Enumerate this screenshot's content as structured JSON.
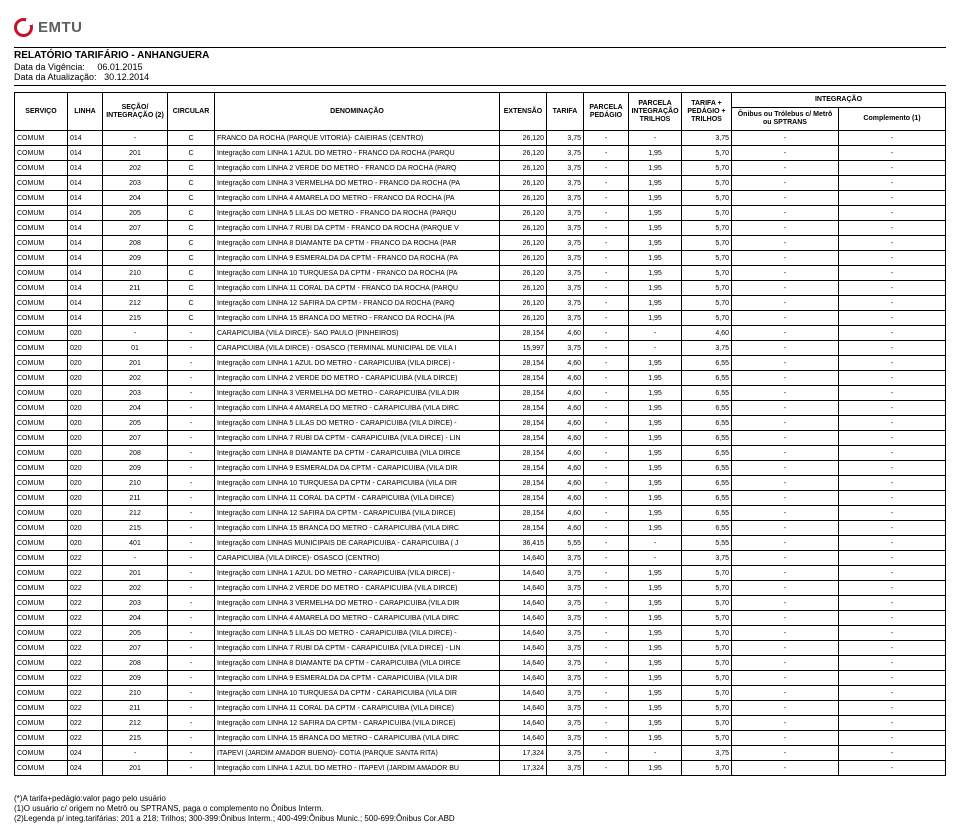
{
  "logo": {
    "text": "EMTU"
  },
  "header": {
    "title": "RELATÓRIO TARIFÁRIO - ANHANGUERA",
    "vigencia_label": "Data da Vigência:",
    "vigencia_value": "06.01.2015",
    "atualizacao_label": "Data da Atualização:",
    "atualizacao_value": "30.12.2014"
  },
  "columns": {
    "servico": "SERVIÇO",
    "linha": "LINHA",
    "secao": "SEÇÃO/ INTEGRAÇÃO (2)",
    "circular": "CIRCULAR",
    "denominacao": "DENOMINAÇÃO",
    "extensao": "EXTENSÃO",
    "tarifa": "TARIFA",
    "parcela_pedagio": "PARCELA PEDÁGIO",
    "parcela_int_trilhos": "PARCELA INTEGRAÇÃO TRILHOS",
    "tarifa_ped_trilhos": "TARIFA + PEDÁGIO + TRILHOS",
    "integracao_group": "INTEGRAÇÃO",
    "onibus_trolebus": "Ônibus ou Trólebus c/ Metrô ou SPTRANS",
    "complemento": "Complemento (1)"
  },
  "rows": [
    {
      "servico": "COMUM",
      "linha": "014",
      "secao": "-",
      "circ": "C",
      "denom": "FRANCO DA ROCHA (PARQUE VITORIA)- CAIEIRAS (CENTRO)",
      "ext": "26,120",
      "tarifa": "3,75",
      "ped": "-",
      "pit": "-",
      "tpt": "3,75",
      "ont": "-",
      "comp": "-"
    },
    {
      "servico": "COMUM",
      "linha": "014",
      "secao": "201",
      "circ": "C",
      "denom": "Integração com LINHA 1 AZUL DO METRO - FRANCO DA ROCHA (PARQU",
      "ext": "26,120",
      "tarifa": "3,75",
      "ped": "-",
      "pit": "1,95",
      "tpt": "5,70",
      "ont": "-",
      "comp": "-"
    },
    {
      "servico": "COMUM",
      "linha": "014",
      "secao": "202",
      "circ": "C",
      "denom": "Integração com LINHA 2 VERDE DO METRO - FRANCO DA ROCHA (PARQ",
      "ext": "26,120",
      "tarifa": "3,75",
      "ped": "-",
      "pit": "1,95",
      "tpt": "5,70",
      "ont": "-",
      "comp": "-"
    },
    {
      "servico": "COMUM",
      "linha": "014",
      "secao": "203",
      "circ": "C",
      "denom": "Integração com LINHA 3 VERMELHA DO METRO - FRANCO DA ROCHA (PA",
      "ext": "26,120",
      "tarifa": "3,75",
      "ped": "-",
      "pit": "1,95",
      "tpt": "5,70",
      "ont": "-",
      "comp": "-"
    },
    {
      "servico": "COMUM",
      "linha": "014",
      "secao": "204",
      "circ": "C",
      "denom": "Integração com LINHA 4 AMARELA DO METRO - FRANCO DA ROCHA (PA",
      "ext": "26,120",
      "tarifa": "3,75",
      "ped": "-",
      "pit": "1,95",
      "tpt": "5,70",
      "ont": "-",
      "comp": "-"
    },
    {
      "servico": "COMUM",
      "linha": "014",
      "secao": "205",
      "circ": "C",
      "denom": "Integração com LINHA 5 LILAS DO METRO - FRANCO DA ROCHA (PARQU",
      "ext": "26,120",
      "tarifa": "3,75",
      "ped": "-",
      "pit": "1,95",
      "tpt": "5,70",
      "ont": "-",
      "comp": "-"
    },
    {
      "servico": "COMUM",
      "linha": "014",
      "secao": "207",
      "circ": "C",
      "denom": "Integração com LINHA 7 RUBI DA CPTM - FRANCO DA ROCHA (PARQUE V",
      "ext": "26,120",
      "tarifa": "3,75",
      "ped": "-",
      "pit": "1,95",
      "tpt": "5,70",
      "ont": "-",
      "comp": "-"
    },
    {
      "servico": "COMUM",
      "linha": "014",
      "secao": "208",
      "circ": "C",
      "denom": "Integração com LINHA 8 DIAMANTE DA CPTM - FRANCO DA ROCHA (PAR",
      "ext": "26,120",
      "tarifa": "3,75",
      "ped": "-",
      "pit": "1,95",
      "tpt": "5,70",
      "ont": "-",
      "comp": "-"
    },
    {
      "servico": "COMUM",
      "linha": "014",
      "secao": "209",
      "circ": "C",
      "denom": "Integração com LINHA 9 ESMERALDA DA CPTM - FRANCO DA ROCHA (PA",
      "ext": "26,120",
      "tarifa": "3,75",
      "ped": "-",
      "pit": "1,95",
      "tpt": "5,70",
      "ont": "-",
      "comp": "-"
    },
    {
      "servico": "COMUM",
      "linha": "014",
      "secao": "210",
      "circ": "C",
      "denom": "Integração com LINHA 10 TURQUESA DA CPTM - FRANCO DA ROCHA (PA",
      "ext": "26,120",
      "tarifa": "3,75",
      "ped": "-",
      "pit": "1,95",
      "tpt": "5,70",
      "ont": "-",
      "comp": "-"
    },
    {
      "servico": "COMUM",
      "linha": "014",
      "secao": "211",
      "circ": "C",
      "denom": "Integração com LINHA 11 CORAL DA CPTM - FRANCO DA ROCHA (PARQU",
      "ext": "26,120",
      "tarifa": "3,75",
      "ped": "-",
      "pit": "1,95",
      "tpt": "5,70",
      "ont": "-",
      "comp": "-"
    },
    {
      "servico": "COMUM",
      "linha": "014",
      "secao": "212",
      "circ": "C",
      "denom": "Integração com LINHA 12 SAFIRA DA CPTM - FRANCO DA ROCHA (PARQ",
      "ext": "26,120",
      "tarifa": "3,75",
      "ped": "-",
      "pit": "1,95",
      "tpt": "5,70",
      "ont": "-",
      "comp": "-"
    },
    {
      "servico": "COMUM",
      "linha": "014",
      "secao": "215",
      "circ": "C",
      "denom": "Integração com LINHA 15 BRANCA DO METRO - FRANCO DA ROCHA (PA",
      "ext": "26,120",
      "tarifa": "3,75",
      "ped": "-",
      "pit": "1,95",
      "tpt": "5,70",
      "ont": "-",
      "comp": "-"
    },
    {
      "servico": "COMUM",
      "linha": "020",
      "secao": "-",
      "circ": "-",
      "denom": "CARAPICUIBA (VILA DIRCE)- SAO PAULO (PINHEIROS)",
      "ext": "28,154",
      "tarifa": "4,60",
      "ped": "-",
      "pit": "-",
      "tpt": "4,60",
      "ont": "-",
      "comp": "-"
    },
    {
      "servico": "COMUM",
      "linha": "020",
      "secao": "01",
      "circ": "-",
      "denom": "CARAPICUIBA (VILA DIRCE) - OSASCO (TERMINAL MUNICIPAL DE VILA I",
      "ext": "15,997",
      "tarifa": "3,75",
      "ped": "-",
      "pit": "-",
      "tpt": "3,75",
      "ont": "-",
      "comp": "-"
    },
    {
      "servico": "COMUM",
      "linha": "020",
      "secao": "201",
      "circ": "-",
      "denom": "Integração com LINHA 1 AZUL DO METRO - CARAPICUIBA (VILA DIRCE) -",
      "ext": "28,154",
      "tarifa": "4,60",
      "ped": "-",
      "pit": "1,95",
      "tpt": "6,55",
      "ont": "-",
      "comp": "-"
    },
    {
      "servico": "COMUM",
      "linha": "020",
      "secao": "202",
      "circ": "-",
      "denom": "Integração com LINHA 2 VERDE DO METRO - CARAPICUIBA (VILA DIRCE)",
      "ext": "28,154",
      "tarifa": "4,60",
      "ped": "-",
      "pit": "1,95",
      "tpt": "6,55",
      "ont": "-",
      "comp": "-"
    },
    {
      "servico": "COMUM",
      "linha": "020",
      "secao": "203",
      "circ": "-",
      "denom": "Integração com LINHA 3 VERMELHA DO METRO - CARAPICUIBA (VILA DIR",
      "ext": "28,154",
      "tarifa": "4,60",
      "ped": "-",
      "pit": "1,95",
      "tpt": "6,55",
      "ont": "-",
      "comp": "-"
    },
    {
      "servico": "COMUM",
      "linha": "020",
      "secao": "204",
      "circ": "-",
      "denom": "Integração com LINHA 4 AMARELA DO METRO - CARAPICUIBA (VILA DIRC",
      "ext": "28,154",
      "tarifa": "4,60",
      "ped": "-",
      "pit": "1,95",
      "tpt": "6,55",
      "ont": "-",
      "comp": "-"
    },
    {
      "servico": "COMUM",
      "linha": "020",
      "secao": "205",
      "circ": "-",
      "denom": "Integração com LINHA 5 LILAS DO METRO - CARAPICUIBA (VILA DIRCE) -",
      "ext": "28,154",
      "tarifa": "4,60",
      "ped": "-",
      "pit": "1,95",
      "tpt": "6,55",
      "ont": "-",
      "comp": "-"
    },
    {
      "servico": "COMUM",
      "linha": "020",
      "secao": "207",
      "circ": "-",
      "denom": "Integração com LINHA 7 RUBI DA CPTM - CARAPICUIBA (VILA DIRCE) - LIN",
      "ext": "28,154",
      "tarifa": "4,60",
      "ped": "-",
      "pit": "1,95",
      "tpt": "6,55",
      "ont": "-",
      "comp": "-"
    },
    {
      "servico": "COMUM",
      "linha": "020",
      "secao": "208",
      "circ": "-",
      "denom": "Integração com LINHA 8 DIAMANTE DA CPTM - CARAPICUIBA (VILA DIRCE",
      "ext": "28,154",
      "tarifa": "4,60",
      "ped": "-",
      "pit": "1,95",
      "tpt": "6,55",
      "ont": "-",
      "comp": "-"
    },
    {
      "servico": "COMUM",
      "linha": "020",
      "secao": "209",
      "circ": "-",
      "denom": "Integração com LINHA 9 ESMERALDA DA CPTM - CARAPICUIBA (VILA DIR",
      "ext": "28,154",
      "tarifa": "4,60",
      "ped": "-",
      "pit": "1,95",
      "tpt": "6,55",
      "ont": "-",
      "comp": "-"
    },
    {
      "servico": "COMUM",
      "linha": "020",
      "secao": "210",
      "circ": "-",
      "denom": "Integração com LINHA 10 TURQUESA DA CPTM - CARAPICUIBA (VILA DIR",
      "ext": "28,154",
      "tarifa": "4,60",
      "ped": "-",
      "pit": "1,95",
      "tpt": "6,55",
      "ont": "-",
      "comp": "-"
    },
    {
      "servico": "COMUM",
      "linha": "020",
      "secao": "211",
      "circ": "-",
      "denom": "Integração com LINHA 11 CORAL DA CPTM - CARAPICUIBA (VILA DIRCE)",
      "ext": "28,154",
      "tarifa": "4,60",
      "ped": "-",
      "pit": "1,95",
      "tpt": "6,55",
      "ont": "-",
      "comp": "-"
    },
    {
      "servico": "COMUM",
      "linha": "020",
      "secao": "212",
      "circ": "-",
      "denom": "Integração com LINHA 12 SAFIRA DA CPTM - CARAPICUIBA (VILA DIRCE)",
      "ext": "28,154",
      "tarifa": "4,60",
      "ped": "-",
      "pit": "1,95",
      "tpt": "6,55",
      "ont": "-",
      "comp": "-"
    },
    {
      "servico": "COMUM",
      "linha": "020",
      "secao": "215",
      "circ": "-",
      "denom": "Integração com LINHA 15 BRANCA DO METRO - CARAPICUIBA (VILA DIRC",
      "ext": "28,154",
      "tarifa": "4,60",
      "ped": "-",
      "pit": "1,95",
      "tpt": "6,55",
      "ont": "-",
      "comp": "-"
    },
    {
      "servico": "COMUM",
      "linha": "020",
      "secao": "401",
      "circ": "-",
      "denom": "Integração com LINHAS MUNICIPAIS DE CARAPICUIBA - CARAPICUIBA ( J",
      "ext": "36,415",
      "tarifa": "5,55",
      "ped": "-",
      "pit": "-",
      "tpt": "5,55",
      "ont": "-",
      "comp": "-"
    },
    {
      "servico": "COMUM",
      "linha": "022",
      "secao": "-",
      "circ": "-",
      "denom": "CARAPICUIBA (VILA DIRCE)- OSASCO (CENTRO)",
      "ext": "14,640",
      "tarifa": "3,75",
      "ped": "-",
      "pit": "-",
      "tpt": "3,75",
      "ont": "-",
      "comp": "-"
    },
    {
      "servico": "COMUM",
      "linha": "022",
      "secao": "201",
      "circ": "-",
      "denom": "Integração com LINHA 1 AZUL DO METRO - CARAPICUIBA (VILA DIRCE) -",
      "ext": "14,640",
      "tarifa": "3,75",
      "ped": "-",
      "pit": "1,95",
      "tpt": "5,70",
      "ont": "-",
      "comp": "-"
    },
    {
      "servico": "COMUM",
      "linha": "022",
      "secao": "202",
      "circ": "-",
      "denom": "Integração com LINHA 2 VERDE DO METRO - CARAPICUIBA (VILA DIRCE)",
      "ext": "14,640",
      "tarifa": "3,75",
      "ped": "-",
      "pit": "1,95",
      "tpt": "5,70",
      "ont": "-",
      "comp": "-"
    },
    {
      "servico": "COMUM",
      "linha": "022",
      "secao": "203",
      "circ": "-",
      "denom": "Integração com LINHA 3 VERMELHA DO METRO - CARAPICUIBA (VILA DIR",
      "ext": "14,640",
      "tarifa": "3,75",
      "ped": "-",
      "pit": "1,95",
      "tpt": "5,70",
      "ont": "-",
      "comp": "-"
    },
    {
      "servico": "COMUM",
      "linha": "022",
      "secao": "204",
      "circ": "-",
      "denom": "Integração com LINHA 4 AMARELA DO METRO - CARAPICUIBA (VILA DIRC",
      "ext": "14,640",
      "tarifa": "3,75",
      "ped": "-",
      "pit": "1,95",
      "tpt": "5,70",
      "ont": "-",
      "comp": "-"
    },
    {
      "servico": "COMUM",
      "linha": "022",
      "secao": "205",
      "circ": "-",
      "denom": "Integração com LINHA 5 LILAS DO METRO - CARAPICUIBA (VILA DIRCE) -",
      "ext": "14,640",
      "tarifa": "3,75",
      "ped": "-",
      "pit": "1,95",
      "tpt": "5,70",
      "ont": "-",
      "comp": "-"
    },
    {
      "servico": "COMUM",
      "linha": "022",
      "secao": "207",
      "circ": "-",
      "denom": "Integração com LINHA 7 RUBI DA CPTM - CARAPICUIBA (VILA DIRCE) - LIN",
      "ext": "14,640",
      "tarifa": "3,75",
      "ped": "-",
      "pit": "1,95",
      "tpt": "5,70",
      "ont": "-",
      "comp": "-"
    },
    {
      "servico": "COMUM",
      "linha": "022",
      "secao": "208",
      "circ": "-",
      "denom": "Integração com LINHA 8 DIAMANTE DA CPTM - CARAPICUIBA (VILA DIRCE",
      "ext": "14,640",
      "tarifa": "3,75",
      "ped": "-",
      "pit": "1,95",
      "tpt": "5,70",
      "ont": "-",
      "comp": "-"
    },
    {
      "servico": "COMUM",
      "linha": "022",
      "secao": "209",
      "circ": "-",
      "denom": "Integração com LINHA 9 ESMERALDA DA CPTM - CARAPICUIBA (VILA DIR",
      "ext": "14,640",
      "tarifa": "3,75",
      "ped": "-",
      "pit": "1,95",
      "tpt": "5,70",
      "ont": "-",
      "comp": "-"
    },
    {
      "servico": "COMUM",
      "linha": "022",
      "secao": "210",
      "circ": "-",
      "denom": "Integração com LINHA 10 TURQUESA DA CPTM - CARAPICUIBA (VILA DIR",
      "ext": "14,640",
      "tarifa": "3,75",
      "ped": "-",
      "pit": "1,95",
      "tpt": "5,70",
      "ont": "-",
      "comp": "-"
    },
    {
      "servico": "COMUM",
      "linha": "022",
      "secao": "211",
      "circ": "-",
      "denom": "Integração com LINHA 11 CORAL DA CPTM - CARAPICUIBA (VILA DIRCE)",
      "ext": "14,640",
      "tarifa": "3,75",
      "ped": "-",
      "pit": "1,95",
      "tpt": "5,70",
      "ont": "-",
      "comp": "-"
    },
    {
      "servico": "COMUM",
      "linha": "022",
      "secao": "212",
      "circ": "-",
      "denom": "Integração com LINHA 12 SAFIRA DA CPTM - CARAPICUIBA (VILA DIRCE)",
      "ext": "14,640",
      "tarifa": "3,75",
      "ped": "-",
      "pit": "1,95",
      "tpt": "5,70",
      "ont": "-",
      "comp": "-"
    },
    {
      "servico": "COMUM",
      "linha": "022",
      "secao": "215",
      "circ": "-",
      "denom": "Integração com LINHA 15 BRANCA DO METRO - CARAPICUIBA (VILA DIRC",
      "ext": "14,640",
      "tarifa": "3,75",
      "ped": "-",
      "pit": "1,95",
      "tpt": "5,70",
      "ont": "-",
      "comp": "-"
    },
    {
      "servico": "COMUM",
      "linha": "024",
      "secao": "-",
      "circ": "-",
      "denom": "ITAPEVI (JARDIM AMADOR BUENO)- COTIA (PARQUE SANTA RITA)",
      "ext": "17,324",
      "tarifa": "3,75",
      "ped": "-",
      "pit": "-",
      "tpt": "3,75",
      "ont": "-",
      "comp": "-"
    },
    {
      "servico": "COMUM",
      "linha": "024",
      "secao": "201",
      "circ": "-",
      "denom": "Integração com LINHA 1 AZUL DO METRO - ITAPEVI (JARDIM AMADOR BU",
      "ext": "17,324",
      "tarifa": "3,75",
      "ped": "-",
      "pit": "1,95",
      "tpt": "5,70",
      "ont": "-",
      "comp": "-"
    }
  ],
  "footnotes": [
    "(*)A tarifa+pedágio:valor pago pelo usuário",
    "(1)O usuário c/ origem no Metrô ou SPTRANS, paga o complemento no Ônibus Interm.",
    "(2)Legenda p/ integ.tarifárias: 201 a 218: Trilhos; 300-399:Ônibus Interm.; 400-499:Ônibus Munic.; 500-699:Ônibus Cor.ABD"
  ]
}
